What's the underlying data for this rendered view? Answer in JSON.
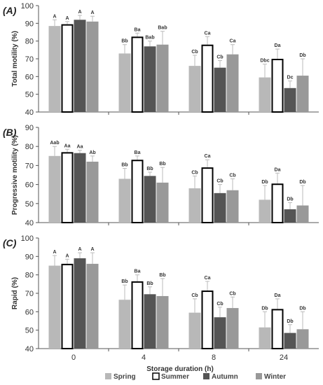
{
  "chart_data": [
    {
      "type": "bar",
      "panel_label": "(A)",
      "ylabel": "Total motility (%)",
      "ylim": [
        40,
        100
      ],
      "yticks": [
        40,
        50,
        60,
        70,
        80,
        90,
        100
      ],
      "categories": [
        "0",
        "4",
        "8",
        "24"
      ],
      "series": [
        {
          "name": "Spring",
          "values": [
            88.5,
            73,
            66,
            59.5
          ],
          "errors": [
            3.5,
            5,
            6,
            7.5
          ],
          "labels": [
            "A",
            "Bb",
            "Cb",
            "Dbc"
          ]
        },
        {
          "name": "Summer",
          "values": [
            89.5,
            82.5,
            78,
            70
          ],
          "errors": [
            1.5,
            2,
            4.5,
            5.5
          ],
          "labels": [
            "A",
            "Ba",
            "Ca",
            "Da"
          ]
        },
        {
          "name": "Autumn",
          "values": [
            92,
            77,
            65,
            53.5
          ],
          "errors": [
            2.5,
            3,
            4,
            4
          ],
          "labels": [
            "A",
            "Bab",
            "Cb",
            "Dc"
          ]
        },
        {
          "name": "Winter",
          "values": [
            91,
            78,
            72.5,
            60.5
          ],
          "errors": [
            3,
            7.5,
            5.5,
            9.5
          ],
          "labels": [
            "A",
            "Bab",
            "Ca",
            "Db"
          ]
        }
      ]
    },
    {
      "type": "bar",
      "panel_label": "(B)",
      "ylabel": "Progressive motility (%)",
      "ylim": [
        40,
        90
      ],
      "yticks": [
        40,
        50,
        60,
        70,
        80,
        90
      ],
      "categories": [
        "0",
        "4",
        "8",
        "24"
      ],
      "series": [
        {
          "name": "Spring",
          "values": [
            75,
            63,
            58,
            52
          ],
          "errors": [
            5,
            5.5,
            6.5,
            7.5
          ],
          "labels": [
            "Aab",
            "Bb",
            "Cb",
            "Db"
          ]
        },
        {
          "name": "Summer",
          "values": [
            77,
            73,
            69,
            60.5
          ],
          "errors": [
            1.5,
            2,
            4,
            5.5
          ],
          "labels": [
            "Aa",
            "Ba",
            "Ca",
            "Da"
          ]
        },
        {
          "name": "Autumn",
          "values": [
            76.5,
            64.5,
            55.5,
            47
          ],
          "errors": [
            1.5,
            2,
            4.5,
            3.5
          ],
          "labels": [
            "Aa",
            "Bb",
            "Cb",
            "Db"
          ]
        },
        {
          "name": "Winter",
          "values": [
            72,
            61,
            57,
            49
          ],
          "errors": [
            3,
            8,
            6,
            10.5
          ],
          "labels": [
            "Ab",
            "Bb",
            "Cb",
            "Db"
          ]
        }
      ]
    },
    {
      "type": "bar",
      "panel_label": "(C)",
      "ylabel": "Rapid (%)",
      "ylim": [
        40,
        100
      ],
      "yticks": [
        40,
        50,
        60,
        70,
        80,
        90,
        100
      ],
      "xlabel": "Storage duration (h)",
      "categories": [
        "0",
        "4",
        "8",
        "24"
      ],
      "series": [
        {
          "name": "Spring",
          "values": [
            85,
            66.5,
            59.5,
            51.5
          ],
          "errors": [
            5.5,
            8,
            7.5,
            8.5
          ],
          "labels": [
            "A",
            "Bb",
            "Cb",
            "Db"
          ]
        },
        {
          "name": "Summer",
          "values": [
            86,
            76.5,
            71.5,
            61.5
          ],
          "errors": [
            2.5,
            3.5,
            5,
            5.5
          ],
          "labels": [
            "A",
            "Ba",
            "Ca",
            "Da"
          ]
        },
        {
          "name": "Autumn",
          "values": [
            89,
            69.5,
            57,
            48.5
          ],
          "errors": [
            3,
            4,
            5.5,
            4.5
          ],
          "labels": [
            "A",
            "Bb",
            "Cb",
            "Db"
          ]
        },
        {
          "name": "Winter",
          "values": [
            86,
            68.5,
            62,
            50.5
          ],
          "errors": [
            6,
            9.5,
            6,
            9.5
          ],
          "labels": [
            "A",
            "Bb",
            "Cb",
            "Db"
          ]
        }
      ]
    }
  ],
  "legend": {
    "placement": "bottom",
    "items": [
      {
        "name": "Spring",
        "color": "#b8b8b8"
      },
      {
        "name": "Summer",
        "color": "#ffffff"
      },
      {
        "name": "Autumn",
        "color": "#555555"
      },
      {
        "name": "Winter",
        "color": "#999999"
      }
    ]
  },
  "colors": {
    "Spring": "#b8b8b8",
    "Summer": "#ffffff",
    "Autumn": "#555555",
    "Winter": "#999999",
    "error_bar": "#bbbbbb",
    "axis": "#555555"
  }
}
